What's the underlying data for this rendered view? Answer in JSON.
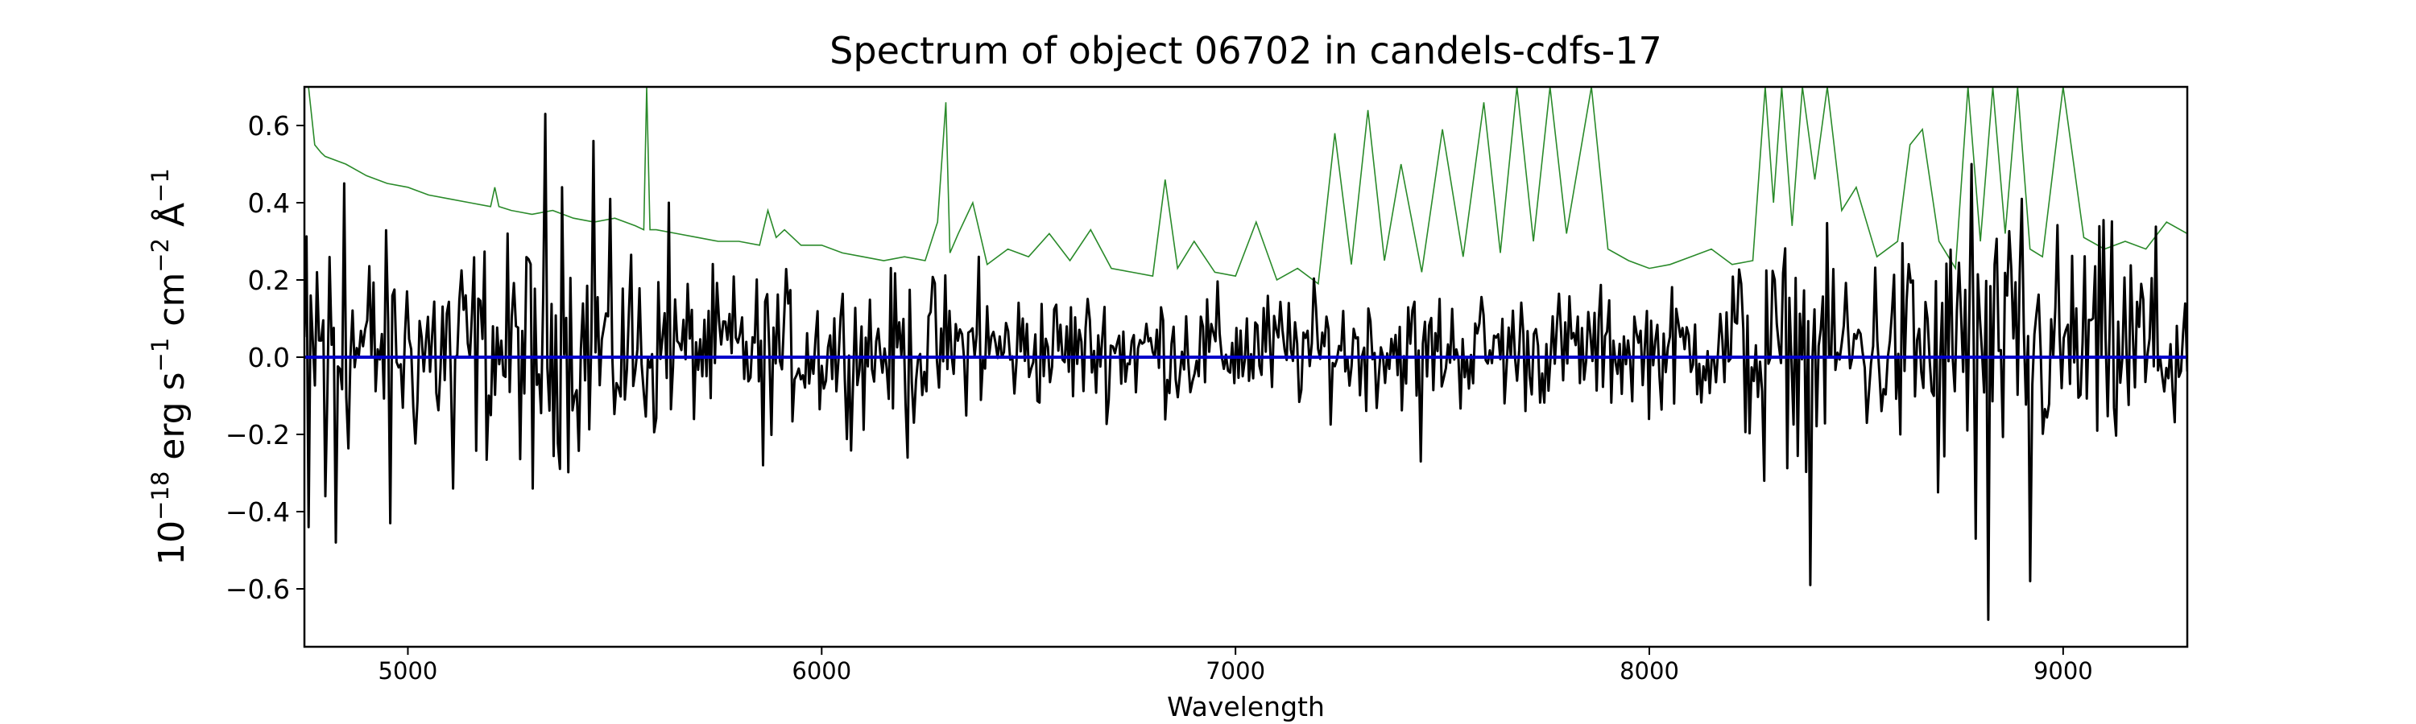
{
  "chart_data": {
    "type": "line",
    "title": "Spectrum of object 06702 in candels-cdfs-17",
    "xlabel": "Wavelength",
    "ylabel": {
      "base": "10",
      "base_exp": "−18",
      "unit1": " erg s",
      "unit1_exp": "−1",
      "unit2": " cm",
      "unit2_exp": "−2",
      "unit3": " Å",
      "unit3_exp": "−1"
    },
    "xlim": [
      4750,
      9300
    ],
    "ylim": [
      -0.75,
      0.7
    ],
    "xticks": [
      5000,
      6000,
      7000,
      8000,
      9000
    ],
    "yticks": [
      -0.6,
      -0.4,
      -0.2,
      0.0,
      0.2,
      0.4,
      0.6
    ],
    "ytick_labels": [
      "−0.6",
      "−0.4",
      "−0.2",
      "0.0",
      "0.2",
      "0.4",
      "0.6"
    ],
    "grid": false,
    "series": [
      {
        "role": "noise",
        "color": "#2a8a2a",
        "x": [
          4750,
          4760,
          4775,
          4790,
          4800,
          4850,
          4900,
          4950,
          5000,
          5050,
          5100,
          5150,
          5200,
          5210,
          5220,
          5250,
          5300,
          5350,
          5400,
          5450,
          5500,
          5550,
          5570,
          5577,
          5585,
          5600,
          5650,
          5700,
          5750,
          5800,
          5850,
          5870,
          5890,
          5910,
          5950,
          6000,
          6050,
          6100,
          6150,
          6200,
          6250,
          6280,
          6300,
          6310,
          6330,
          6365,
          6400,
          6450,
          6500,
          6550,
          6600,
          6650,
          6700,
          6750,
          6800,
          6830,
          6860,
          6900,
          6950,
          7000,
          7050,
          7100,
          7150,
          7200,
          7240,
          7280,
          7320,
          7360,
          7400,
          7450,
          7500,
          7550,
          7600,
          7640,
          7680,
          7720,
          7760,
          7800,
          7860,
          7900,
          7950,
          8000,
          8050,
          8100,
          8150,
          8200,
          8250,
          8280,
          8300,
          8320,
          8345,
          8370,
          8400,
          8430,
          8465,
          8500,
          8550,
          8600,
          8630,
          8660,
          8700,
          8740,
          8770,
          8800,
          8830,
          8860,
          8890,
          8920,
          8950,
          9000,
          9050,
          9100,
          9150,
          9200,
          9250,
          9300
        ],
        "y": [
          0.7,
          0.7,
          0.55,
          0.53,
          0.52,
          0.5,
          0.47,
          0.45,
          0.44,
          0.42,
          0.41,
          0.4,
          0.39,
          0.44,
          0.39,
          0.38,
          0.37,
          0.38,
          0.36,
          0.35,
          0.36,
          0.34,
          0.33,
          0.7,
          0.33,
          0.33,
          0.32,
          0.31,
          0.3,
          0.3,
          0.29,
          0.38,
          0.31,
          0.33,
          0.29,
          0.29,
          0.27,
          0.26,
          0.25,
          0.26,
          0.25,
          0.35,
          0.66,
          0.27,
          0.32,
          0.4,
          0.24,
          0.28,
          0.26,
          0.32,
          0.25,
          0.33,
          0.23,
          0.22,
          0.21,
          0.46,
          0.23,
          0.3,
          0.22,
          0.21,
          0.35,
          0.2,
          0.23,
          0.19,
          0.58,
          0.24,
          0.64,
          0.25,
          0.5,
          0.22,
          0.59,
          0.26,
          0.66,
          0.27,
          0.7,
          0.3,
          0.7,
          0.32,
          0.7,
          0.28,
          0.25,
          0.23,
          0.24,
          0.26,
          0.28,
          0.24,
          0.25,
          0.7,
          0.4,
          0.7,
          0.34,
          0.7,
          0.46,
          0.7,
          0.38,
          0.44,
          0.26,
          0.3,
          0.55,
          0.59,
          0.3,
          0.23,
          0.7,
          0.3,
          0.7,
          0.32,
          0.7,
          0.28,
          0.26,
          0.7,
          0.31,
          0.28,
          0.3,
          0.28,
          0.35,
          0.32
        ]
      },
      {
        "role": "model",
        "color": "#0000cc",
        "x": [
          4750,
          9300
        ],
        "y": [
          0.0,
          0.0
        ]
      },
      {
        "role": "flux",
        "color": "#000000",
        "x_start": 4750,
        "x_end": 9300,
        "points": 900,
        "amplitude_by_range": [
          {
            "x": [
              4750,
              4850
            ],
            "amp": 0.3
          },
          {
            "x": [
              4850,
              5600
            ],
            "amp": 0.24
          },
          {
            "x": [
              5600,
              6300
            ],
            "amp": 0.16
          },
          {
            "x": [
              6300,
              7200
            ],
            "amp": 0.13
          },
          {
            "x": [
              7200,
              8200
            ],
            "amp": 0.13
          },
          {
            "x": [
              8200,
              8600
            ],
            "amp": 0.22
          },
          {
            "x": [
              8600,
              9300
            ],
            "amp": 0.26
          }
        ],
        "peaks": [
          {
            "x": 4762,
            "y": -0.44
          },
          {
            "x": 4780,
            "y": 0.22
          },
          {
            "x": 4803,
            "y": -0.36
          },
          {
            "x": 4825,
            "y": -0.48
          },
          {
            "x": 4845,
            "y": 0.45
          },
          {
            "x": 4960,
            "y": -0.43
          },
          {
            "x": 5110,
            "y": -0.34
          },
          {
            "x": 5300,
            "y": -0.34
          },
          {
            "x": 5330,
            "y": 0.63
          },
          {
            "x": 5370,
            "y": 0.44
          },
          {
            "x": 5450,
            "y": 0.56
          },
          {
            "x": 5490,
            "y": 0.41
          },
          {
            "x": 5630,
            "y": 0.4
          },
          {
            "x": 5860,
            "y": -0.28
          },
          {
            "x": 6210,
            "y": -0.26
          },
          {
            "x": 6380,
            "y": 0.26
          },
          {
            "x": 7450,
            "y": -0.27
          },
          {
            "x": 8280,
            "y": -0.32
          },
          {
            "x": 8390,
            "y": -0.59
          },
          {
            "x": 8700,
            "y": -0.35
          },
          {
            "x": 8790,
            "y": -0.47
          },
          {
            "x": 8820,
            "y": -0.68
          },
          {
            "x": 8780,
            "y": 0.5
          },
          {
            "x": 8900,
            "y": 0.41
          },
          {
            "x": 8920,
            "y": -0.58
          }
        ]
      }
    ]
  }
}
